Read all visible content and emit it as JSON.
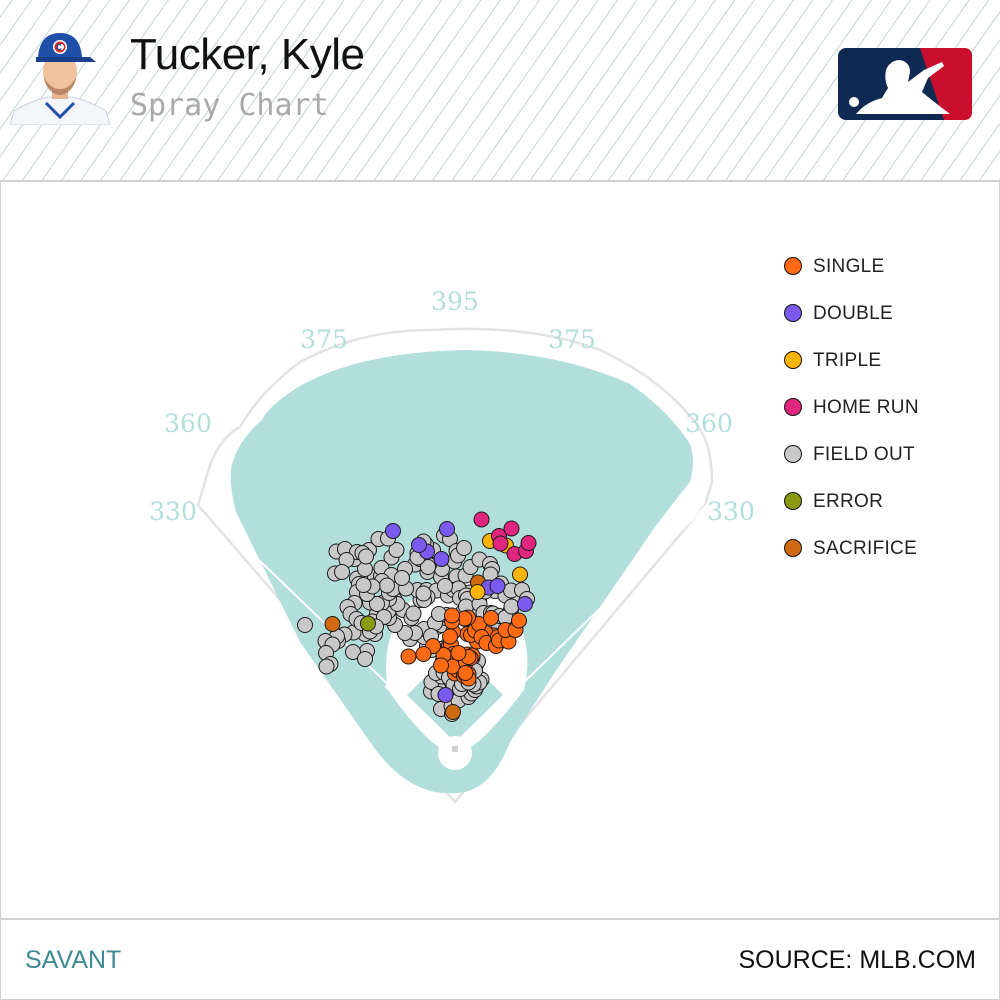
{
  "header": {
    "player_name": "Tucker, Kyle",
    "chart_title": "Spray Chart",
    "team_logo_icon": "cubs-c-icon",
    "league_logo_icon": "mlb-batter-logo-icon"
  },
  "colors": {
    "field_fill": "#b2dfdc",
    "infield_dirt": "#ffffff",
    "wall_outline": "#e3e3e3",
    "distance_text": "#b2dfdc",
    "footer_accent": "#3f8a96"
  },
  "legend": [
    {
      "label": "SINGLE",
      "color": "#ff6a13"
    },
    {
      "label": "DOUBLE",
      "color": "#7b5bef"
    },
    {
      "label": "TRIPLE",
      "color": "#ffb400"
    },
    {
      "label": "HOME RUN",
      "color": "#e0267e"
    },
    {
      "label": "FIELD OUT",
      "color": "#c8c8c8"
    },
    {
      "label": "ERROR",
      "color": "#8a9a10"
    },
    {
      "label": "SACRIFICE",
      "color": "#d06a10"
    }
  ],
  "chart_data": {
    "type": "scatter",
    "xlim": [
      -200,
      200
    ],
    "ylim": [
      0,
      450
    ],
    "distance_labels": [
      "330",
      "360",
      "375",
      "395",
      "375",
      "360",
      "330"
    ],
    "points": {
      "SINGLE": [
        [
          0,
          151
        ],
        [
          5,
          158
        ],
        [
          16,
          159
        ],
        [
          18,
          146
        ],
        [
          21,
          150
        ],
        [
          27,
          150
        ],
        [
          27,
          141
        ],
        [
          -12,
          205
        ],
        [
          -8,
          209
        ],
        [
          -3,
          190
        ],
        [
          -4,
          183
        ],
        [
          -12,
          178
        ],
        [
          -5,
          165
        ],
        [
          -23,
          188
        ],
        [
          22,
          174
        ],
        [
          25,
          189
        ],
        [
          35,
          187
        ],
        [
          31,
          182
        ],
        [
          27,
          184
        ],
        [
          7,
          192
        ],
        [
          -28,
          167
        ],
        [
          -44,
          206
        ],
        [
          -63,
          190
        ],
        [
          -93,
          185
        ],
        [
          21,
          152
        ],
        [
          44,
          215
        ],
        [
          25,
          230
        ],
        [
          59,
          225
        ],
        [
          79,
          227
        ],
        [
          61,
          232
        ],
        [
          32,
          228
        ],
        [
          40,
          237
        ],
        [
          48,
          250
        ],
        [
          26,
          263
        ],
        [
          19,
          261
        ],
        [
          53,
          224
        ],
        [
          63,
          212
        ],
        [
          82,
          206
        ],
        [
          86,
          224
        ],
        [
          88,
          217
        ],
        [
          107,
          215
        ],
        [
          101,
          238
        ],
        [
          121,
          238
        ],
        [
          128,
          257
        ],
        [
          72,
          262
        ],
        [
          -4,
          234
        ],
        [
          -10,
          225
        ],
        [
          -6,
          255
        ],
        [
          -6,
          267
        ]
      ],
      "DOUBLE": [
        [
          -19,
          108
        ],
        [
          -27,
          380
        ],
        [
          67,
          323
        ],
        [
          85,
          326
        ],
        [
          140,
          290
        ],
        [
          -16,
          440
        ],
        [
          -56,
          395
        ],
        [
          -72,
          408
        ],
        [
          -124,
          436
        ]
      ],
      "TRIPLE": [
        [
          45,
          314
        ],
        [
          130,
          349
        ],
        [
          102,
          407
        ],
        [
          70,
          416
        ]
      ],
      "HOME RUN": [
        [
          88,
          426
        ],
        [
          119,
          390
        ],
        [
          142,
          396
        ],
        [
          53,
          459
        ],
        [
          91,
          411
        ],
        [
          147,
          412
        ],
        [
          113,
          441
        ]
      ],
      "FIELD OUT": [
        [
          -48,
          115
        ],
        [
          -33,
          120
        ],
        [
          -47,
          134
        ],
        [
          -27,
          145
        ],
        [
          -38,
          152
        ],
        [
          -20,
          159
        ],
        [
          -14,
          176
        ],
        [
          -24,
          177
        ],
        [
          -15,
          202
        ],
        [
          -23,
          153
        ],
        [
          -9,
          166
        ],
        [
          -8,
          175
        ],
        [
          -12,
          143
        ],
        [
          6,
          151
        ],
        [
          18,
          145
        ],
        [
          -3,
          128
        ],
        [
          -33,
          110
        ],
        [
          -7,
          95
        ],
        [
          -28,
          80
        ],
        [
          -6,
          70
        ],
        [
          -7,
          86
        ],
        [
          7,
          97
        ],
        [
          27,
          104
        ],
        [
          33,
          111
        ],
        [
          10,
          120
        ],
        [
          40,
          118
        ],
        [
          43,
          125
        ],
        [
          40,
          140
        ],
        [
          33,
          135
        ],
        [
          26,
          140
        ],
        [
          20,
          138
        ],
        [
          14,
          130
        ],
        [
          10,
          160
        ],
        [
          5,
          172
        ],
        [
          15,
          168
        ],
        [
          22,
          170
        ],
        [
          25,
          167
        ],
        [
          34,
          155
        ],
        [
          38,
          146
        ],
        [
          39,
          140
        ],
        [
          46,
          142
        ],
        [
          53,
          139
        ],
        [
          49,
          133
        ],
        [
          37,
          129
        ],
        [
          27,
          133
        ],
        [
          28,
          151
        ],
        [
          24,
          164
        ],
        [
          28,
          176
        ],
        [
          30,
          180
        ],
        [
          17,
          184
        ],
        [
          30,
          170
        ],
        [
          32,
          161
        ],
        [
          37,
          171
        ],
        [
          42,
          169
        ],
        [
          46,
          176
        ],
        [
          35,
          183
        ],
        [
          40,
          157
        ],
        [
          -15,
          207
        ],
        [
          -29,
          200
        ],
        [
          -19,
          198
        ],
        [
          -47,
          198
        ],
        [
          -56,
          206
        ],
        [
          -62,
          224
        ],
        [
          -90,
          220
        ],
        [
          -62,
          240
        ],
        [
          -36,
          244
        ],
        [
          -27,
          248
        ],
        [
          -16,
          261
        ],
        [
          -40,
          252
        ],
        [
          -48,
          226
        ],
        [
          -80,
          232
        ],
        [
          -100,
          232
        ],
        [
          -120,
          248
        ],
        [
          -132,
          262
        ],
        [
          -156,
          270
        ],
        [
          -165,
          255
        ],
        [
          -145,
          285
        ],
        [
          -133,
          276
        ],
        [
          -104,
          278
        ],
        [
          -87,
          262
        ],
        [
          -69,
          298
        ],
        [
          -75,
          318
        ],
        [
          -57,
          318
        ],
        [
          -37,
          317
        ],
        [
          -55,
          354
        ],
        [
          -28,
          344
        ],
        [
          -26,
          360
        ],
        [
          3,
          345
        ],
        [
          21,
          347
        ],
        [
          15,
          314
        ],
        [
          30,
          313
        ],
        [
          48,
          300
        ],
        [
          48,
          282
        ],
        [
          80,
          316
        ],
        [
          101,
          307
        ],
        [
          125,
          300
        ],
        [
          112,
          279
        ],
        [
          111,
          265
        ],
        [
          85,
          253
        ],
        [
          41,
          292
        ],
        [
          -14,
          307
        ],
        [
          -3,
          318
        ],
        [
          7,
          321
        ],
        [
          10,
          302
        ],
        [
          22,
          307
        ],
        [
          25,
          300
        ],
        [
          16,
          274
        ],
        [
          20,
          260
        ],
        [
          44,
          267
        ],
        [
          -17,
          268
        ],
        [
          -32,
          270
        ],
        [
          -55,
          304
        ],
        [
          -62,
          298
        ],
        [
          -63,
          311
        ],
        [
          -83,
          271
        ],
        [
          -121,
          299
        ],
        [
          -115,
          290
        ],
        [
          -132,
          300
        ],
        [
          -146,
          292
        ],
        [
          -179,
          312
        ],
        [
          -170,
          293
        ],
        [
          -156,
          290
        ],
        [
          -132,
          312
        ],
        [
          -124,
          320
        ],
        [
          -98,
          321
        ],
        [
          -52,
          368
        ],
        [
          -75,
          392
        ],
        [
          -80,
          369
        ],
        [
          -70,
          380
        ],
        [
          -20,
          326
        ],
        [
          22,
          285
        ],
        [
          49,
          290
        ],
        [
          57,
          272
        ],
        [
          72,
          272
        ],
        [
          76,
          271
        ],
        [
          89,
          266
        ],
        [
          101,
          263
        ],
        [
          113,
          285
        ],
        [
          -142,
          264
        ],
        [
          -180,
          230
        ],
        [
          -203,
          233
        ],
        [
          -221,
          229
        ],
        [
          -234,
          216
        ],
        [
          -236,
          225
        ],
        [
          -176,
          196
        ],
        [
          -204,
          194
        ],
        [
          -259,
          216
        ],
        [
          -245,
          209
        ],
        [
          -300,
          248
        ],
        [
          -258,
          192
        ],
        [
          -249,
          170
        ],
        [
          -257,
          165
        ],
        [
          -180,
          180
        ],
        [
          -44,
          398
        ],
        [
          -58,
          409
        ],
        [
          -63,
          415
        ],
        [
          -22,
          427
        ],
        [
          -54,
          364
        ],
        [
          -10,
          420
        ],
        [
          3,
          396
        ],
        [
          -1,
          375
        ],
        [
          6,
          387
        ],
        [
          18,
          402
        ],
        [
          31,
          364
        ],
        [
          49,
          379
        ],
        [
          70,
          370
        ],
        [
          74,
          360
        ],
        [
          71,
          349
        ],
        [
          49,
          323
        ],
        [
          60,
          315
        ],
        [
          92,
          331
        ],
        [
          112,
          317
        ],
        [
          134,
          318
        ],
        [
          144,
          300
        ],
        [
          -127,
          383
        ],
        [
          -100,
          360
        ],
        [
          -75,
          383
        ],
        [
          -117,
          398
        ],
        [
          -160,
          344
        ],
        [
          -148,
          346
        ],
        [
          -147,
          362
        ],
        [
          -127,
          348
        ],
        [
          -146,
          336
        ],
        [
          -106,
          342
        ],
        [
          -136,
          327
        ],
        [
          -196,
          341
        ],
        [
          -180,
          360
        ],
        [
          -172,
          398
        ],
        [
          -153,
          420
        ],
        [
          -134,
          421
        ],
        [
          -201,
          380
        ],
        [
          -237,
          395
        ],
        [
          -220,
          400
        ],
        [
          -196,
          394
        ],
        [
          -185,
          392
        ],
        [
          -178,
          385
        ],
        [
          -217,
          378
        ],
        [
          -240,
          351
        ],
        [
          -226,
          354
        ],
        [
          -192,
          330
        ],
        [
          -196,
          314
        ],
        [
          -176,
          310
        ],
        [
          -165,
          325
        ],
        [
          -183,
          328
        ],
        [
          -201,
          292
        ],
        [
          -215,
          284
        ],
        [
          -209,
          270
        ],
        [
          -197,
          260
        ],
        [
          -187,
          252
        ],
        [
          -160,
          230
        ],
        [
          -170,
          235
        ],
        [
          -158,
          245
        ]
      ],
      "ERROR": [
        [
          -174,
          251
        ]
      ],
      "SACRIFICE": [
        [
          -4,
          74
        ],
        [
          46,
          333
        ],
        [
          -245,
          250
        ]
      ]
    }
  },
  "footer": {
    "left_text": "SAVANT",
    "right_text": "SOURCE: MLB.COM"
  }
}
